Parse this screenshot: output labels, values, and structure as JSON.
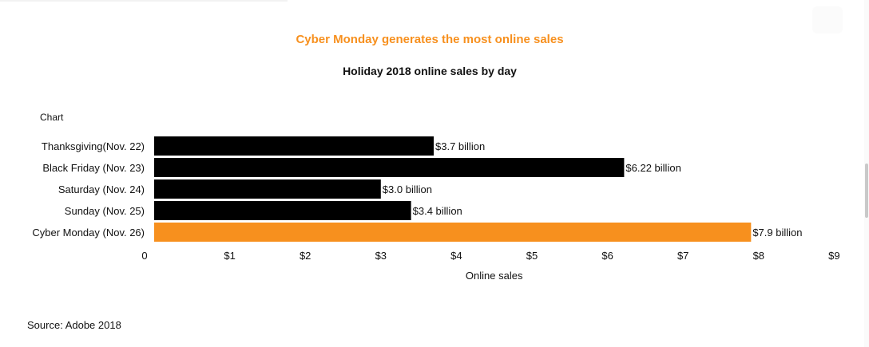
{
  "headline": "Cyber Monday generates the most online sales",
  "chart_caption": "Chart",
  "source": "Source: Adobe 2018",
  "colors": {
    "default_bar": "#000000",
    "highlight_bar": "#f7901e",
    "headline": "#f7901e"
  },
  "chart_data": {
    "type": "bar",
    "orientation": "horizontal",
    "title": "Holiday 2018 online sales by day",
    "xlabel": "Online sales",
    "ylabel": "",
    "xlim": [
      0,
      9
    ],
    "x_ticks": [
      "0",
      "$1",
      "$2",
      "$3",
      "$4",
      "$5",
      "$6",
      "$7",
      "$8",
      "$9"
    ],
    "categories": [
      "Thanksgiving(Nov. 22)",
      "Black Friday (Nov. 23)",
      "Saturday (Nov. 24)",
      "Sunday (Nov. 25)",
      "Cyber Monday (Nov. 26)"
    ],
    "values": [
      3.7,
      6.22,
      3.0,
      3.4,
      7.9
    ],
    "data_labels": [
      "$3.7 billion",
      "$6.22 billion",
      "$3.0 billion",
      "$3.4 billion",
      "$7.9 billion"
    ],
    "highlighted": [
      false,
      false,
      false,
      false,
      true
    ],
    "grid": false,
    "legend": "none"
  }
}
